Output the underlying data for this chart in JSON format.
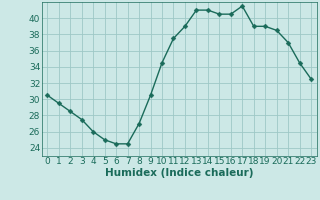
{
  "x": [
    0,
    1,
    2,
    3,
    4,
    5,
    6,
    7,
    8,
    9,
    10,
    11,
    12,
    13,
    14,
    15,
    16,
    17,
    18,
    19,
    20,
    21,
    22,
    23
  ],
  "y": [
    30.5,
    29.5,
    28.5,
    27.5,
    26.0,
    25.0,
    24.5,
    24.5,
    27.0,
    30.5,
    34.5,
    37.5,
    39.0,
    41.0,
    41.0,
    40.5,
    40.5,
    41.5,
    39.0,
    39.0,
    38.5,
    37.0,
    34.5,
    32.5
  ],
  "line_color": "#1a6b5a",
  "marker": "D",
  "marker_size": 2.5,
  "bg_color": "#cce8e6",
  "grid_color": "#9ec8c6",
  "xlabel": "Humidex (Indice chaleur)",
  "xlim": [
    -0.5,
    23.5
  ],
  "ylim": [
    23,
    42
  ],
  "yticks": [
    24,
    26,
    28,
    30,
    32,
    34,
    36,
    38,
    40
  ],
  "xticks": [
    0,
    1,
    2,
    3,
    4,
    5,
    6,
    7,
    8,
    9,
    10,
    11,
    12,
    13,
    14,
    15,
    16,
    17,
    18,
    19,
    20,
    21,
    22,
    23
  ],
  "tick_fontsize": 6.5,
  "label_fontsize": 7.5,
  "line_width": 1.0
}
